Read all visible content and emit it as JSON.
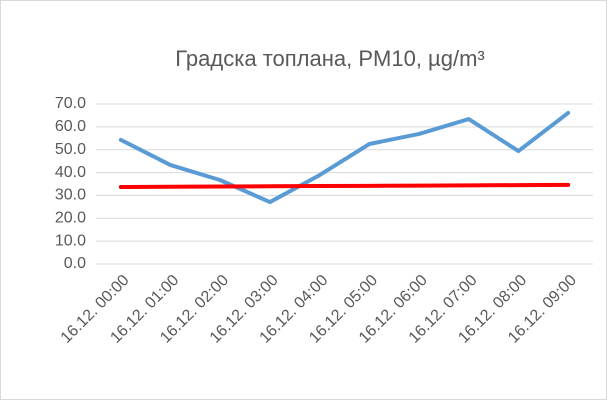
{
  "chart_data": {
    "type": "line",
    "title": "Градска топлана, PM10, µg/m³",
    "categories": [
      "16.12. 00:00",
      "16.12. 01:00",
      "16.12. 02:00",
      "16.12. 03:00",
      "16.12. 04:00",
      "16.12. 05:00",
      "16.12. 06:00",
      "16.12. 07:00",
      "16.12. 08:00",
      "16.12. 09:00"
    ],
    "series": [
      {
        "color": "#5b9bd5",
        "values": [
          54.3,
          43.3,
          36.7,
          27.1,
          38.9,
          52.5,
          56.9,
          63.4,
          49.4,
          66.1
        ]
      },
      {
        "color": "#ff0000",
        "values": [
          33.7,
          33.8,
          33.9,
          34.0,
          34.1,
          34.2,
          34.3,
          34.4,
          34.5,
          34.6
        ]
      }
    ],
    "ylim": [
      0,
      70
    ],
    "yticks": [
      {
        "value": 0,
        "label": "0.0"
      },
      {
        "value": 10,
        "label": "10.0"
      },
      {
        "value": 20,
        "label": "20.0"
      },
      {
        "value": 30,
        "label": "30.0"
      },
      {
        "value": 40,
        "label": "40.0"
      },
      {
        "value": 50,
        "label": "50.0"
      },
      {
        "value": 60,
        "label": "60.0"
      },
      {
        "value": 70,
        "label": "70.0"
      }
    ],
    "grid": true
  }
}
